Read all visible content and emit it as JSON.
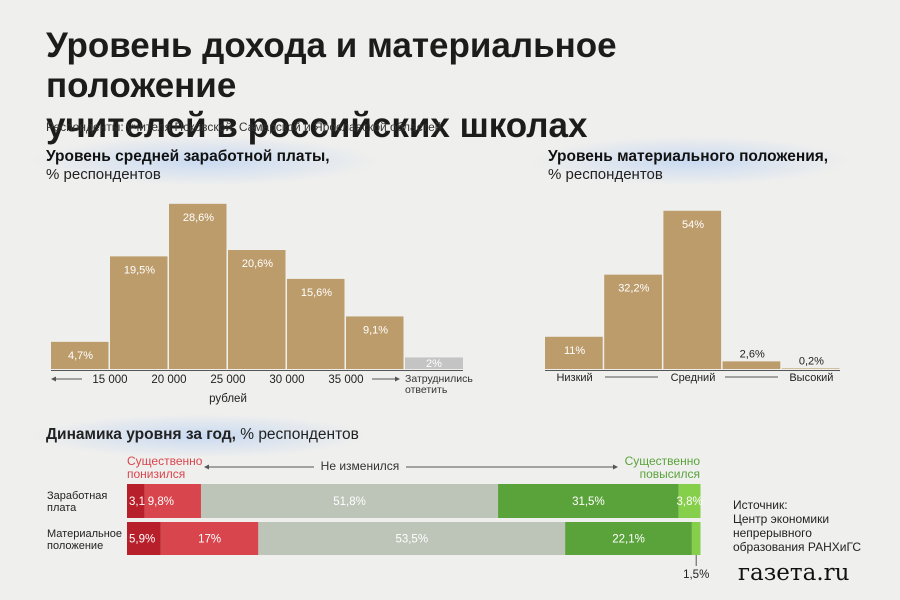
{
  "title_line1": "Уровень дохода и материальное положение",
  "title_line2": "учителей в российских школах",
  "subtitle": "Респонденты: учителя Псковской, Самарской и Ярославской областей",
  "salary": {
    "title": "Уровень средней заработной платы,",
    "unit": "% респондентов"
  },
  "material": {
    "title": "Уровень материального положения,",
    "unit": "% респондентов"
  },
  "dynamics": {
    "title": "Динамика уровня за год,",
    "unit": " % респондентов"
  },
  "source": {
    "line1": "Источник:",
    "line2": "Центр экономики",
    "line3": "непрерывного",
    "line4": "образования РАНХиГС"
  },
  "logo": "газета.ru",
  "colors": {
    "bar": "#bd9c6c",
    "gray_bar": "#c4c4c4",
    "dark_red": "#b71f2a",
    "red": "#d9454d",
    "neutral": "#bdc4b8",
    "green": "#5aa33b",
    "light_green": "#86cf4a"
  },
  "chart_data": [
    {
      "type": "bar",
      "title": "Уровень средней заработной платы,",
      "xlabel": "рублей",
      "ylabel": "% респондентов",
      "tick_labels": [
        "15 000",
        "20 000",
        "25 000",
        "30 000",
        "35 000"
      ],
      "values": [
        4.7,
        19.5,
        28.6,
        20.6,
        15.6,
        9.1
      ],
      "value_labels": [
        "4,7%",
        "19,5%",
        "28,6%",
        "20,6%",
        "15,6%",
        "9,1%"
      ],
      "extra_bar": {
        "label": "Затруднились ответить",
        "label_line1": "Затруднились",
        "label_line2": "ответить",
        "value": 2,
        "value_label": "2%"
      }
    },
    {
      "type": "bar",
      "title": "Уровень материального положения,",
      "ylabel": "% респондентов",
      "values": [
        11,
        32.2,
        54,
        2.6,
        0.2
      ],
      "value_labels": [
        "11%",
        "32,2%",
        "54%",
        "2,6%",
        "0,2%"
      ],
      "tick_labels": [
        "Низкий",
        "Средний",
        "Высокий"
      ]
    },
    {
      "type": "bar",
      "stacked": true,
      "horizontal": true,
      "title": "Динамика уровня за год,",
      "header_labels": {
        "down_line1": "Существенно",
        "down_line2": "понизился",
        "middle": "Не изменился",
        "up_line1": "Существенно",
        "up_line2": "повысился"
      },
      "categories": [
        "Заработная плата",
        "Материальное положение"
      ],
      "category_lines": [
        [
          "Заработная",
          "плата"
        ],
        [
          "Материальное",
          "положение"
        ]
      ],
      "series_values": [
        [
          3.1,
          9.8,
          51.8,
          31.5,
          3.8
        ],
        [
          5.9,
          17,
          53.5,
          22.1,
          1.5
        ]
      ],
      "series_labels": [
        [
          "3,1%",
          "9,8%",
          "51,8%",
          "31,5%",
          "3,8%"
        ],
        [
          "5,9%",
          "17%",
          "53,5%",
          "22,1%",
          "1,5%"
        ]
      ]
    }
  ]
}
